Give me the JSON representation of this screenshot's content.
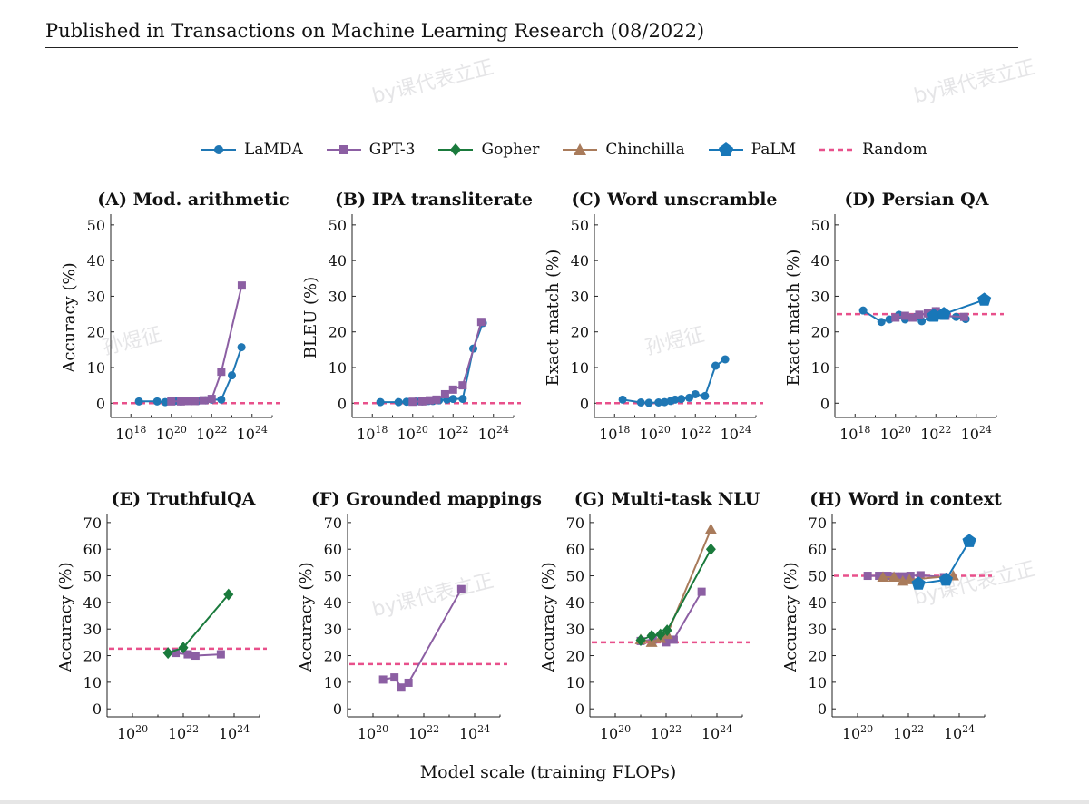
{
  "header": {
    "text": "Published in Transactions on Machine Learning Research (08/2022)"
  },
  "watermarks": {
    "a": "by课代表立正",
    "b": "by课代表立正",
    "c": "孙煜征",
    "d": "孙煜征",
    "e": "by课代表立正",
    "f": "by课代表立正"
  },
  "colors": {
    "LaMDA": "#1f77b4",
    "GPT-3": "#8c5fa3",
    "Gopher": "#1a7a3c",
    "Chinchilla": "#a97b5b",
    "PaLM": "#1877b8",
    "Random": "#e8508b"
  },
  "legend": [
    {
      "label": "LaMDA",
      "marker": "circle"
    },
    {
      "label": "GPT-3",
      "marker": "square"
    },
    {
      "label": "Gopher",
      "marker": "diamond"
    },
    {
      "label": "Chinchilla",
      "marker": "triangle"
    },
    {
      "label": "PaLM",
      "marker": "pentagon"
    },
    {
      "label": "Random",
      "marker": "dashed"
    }
  ],
  "global_xlabel": "Model scale (training FLOPs)",
  "chart_data": [
    {
      "type": "line",
      "title": "(A) Mod. arithmetic",
      "ylabel": "Accuracy (%)",
      "xscale": "log",
      "xlim": [
        1e+17,
        1e+25
      ],
      "ylim": [
        -4,
        52
      ],
      "xticks": [
        18,
        20,
        22,
        24
      ],
      "yticks": [
        0,
        10,
        20,
        30,
        40,
        50
      ],
      "random": 0,
      "series": [
        {
          "name": "LaMDA",
          "marker": "circle",
          "x": [
            2.5e+18,
            2e+19,
            5e+19,
            1.5e+20,
            3e+20,
            6e+20,
            1e+21,
            2e+21,
            5e+21,
            1e+22,
            3e+22,
            1e+23,
            3e+23
          ],
          "y": [
            0.5,
            0.5,
            0.3,
            0.6,
            0.5,
            0.6,
            0.7,
            0.6,
            0.8,
            1.0,
            1.0,
            7.8,
            15.7
          ]
        },
        {
          "name": "GPT-3",
          "marker": "square",
          "x": [
            1e+20,
            3e+20,
            7e+20,
            1.5e+21,
            4e+21,
            1e+22,
            3e+22,
            3.1e+23
          ],
          "y": [
            0.5,
            0.5,
            0.6,
            0.6,
            0.8,
            1.2,
            8.8,
            33
          ]
        }
      ]
    },
    {
      "type": "line",
      "title": "(B) IPA transliterate",
      "ylabel": "BLEU (%)",
      "xscale": "log",
      "xlim": [
        1e+17,
        1e+25
      ],
      "ylim": [
        -4,
        52
      ],
      "xticks": [
        18,
        20,
        22,
        24
      ],
      "yticks": [
        0,
        10,
        20,
        30,
        40,
        50
      ],
      "random": 0,
      "series": [
        {
          "name": "LaMDA",
          "marker": "circle",
          "x": [
            2.5e+18,
            2e+19,
            5e+19,
            1.5e+20,
            3e+20,
            6e+20,
            1e+21,
            2e+21,
            5e+21,
            1e+22,
            3e+22,
            1e+23,
            3e+23
          ],
          "y": [
            0.3,
            0.3,
            0.4,
            0.5,
            0.5,
            0.6,
            0.6,
            0.8,
            1.0,
            1.2,
            1.2,
            15.3,
            22.5
          ]
        },
        {
          "name": "GPT-3",
          "marker": "square",
          "x": [
            1e+20,
            3e+20,
            7e+20,
            1.5e+21,
            4e+21,
            1e+22,
            3e+22,
            2.5e+23
          ],
          "y": [
            0.4,
            0.5,
            0.8,
            1.0,
            2.5,
            3.8,
            5.0,
            22.8
          ]
        }
      ]
    },
    {
      "type": "line",
      "title": "(C) Word unscramble",
      "ylabel": "Exact match (%)",
      "xscale": "log",
      "xlim": [
        1e+17,
        1e+25
      ],
      "ylim": [
        -4,
        52
      ],
      "xticks": [
        18,
        20,
        22,
        24
      ],
      "yticks": [
        0,
        10,
        20,
        30,
        40,
        50
      ],
      "random": 0,
      "series": [
        {
          "name": "LaMDA",
          "marker": "circle",
          "x": [
            2.5e+18,
            2e+19,
            5e+19,
            1.5e+20,
            3e+20,
            6e+20,
            1e+21,
            2e+21,
            5e+21,
            1e+22,
            3e+22,
            1e+23,
            3e+23
          ],
          "y": [
            1.0,
            0.2,
            0.1,
            0.2,
            0.3,
            0.6,
            1.0,
            1.2,
            1.5,
            2.5,
            2.0,
            10.5,
            12.3
          ]
        }
      ]
    },
    {
      "type": "line",
      "title": "(D) Persian QA",
      "ylabel": "Exact match (%)",
      "xscale": "log",
      "xlim": [
        1e+17,
        1e+25
      ],
      "ylim": [
        -4,
        52
      ],
      "xticks": [
        18,
        20,
        22,
        24
      ],
      "yticks": [
        0,
        10,
        20,
        30,
        40,
        50
      ],
      "random": 25,
      "series": [
        {
          "name": "LaMDA",
          "marker": "circle",
          "x": [
            2.5e+18,
            2e+19,
            5e+19,
            1.5e+20,
            3e+20,
            6e+20,
            1e+21,
            2e+21,
            5e+21,
            1e+22,
            3e+22,
            1e+23,
            3e+23
          ],
          "y": [
            26.0,
            22.8,
            23.5,
            24.8,
            23.5,
            24.0,
            24.2,
            23.0,
            24.0,
            25.8,
            24.5,
            24.2,
            23.6
          ]
        },
        {
          "name": "GPT-3",
          "marker": "square",
          "x": [
            1e+20,
            3e+20,
            7e+20,
            1.5e+21,
            4e+21,
            1e+22,
            3e+22,
            2.5e+23
          ],
          "y": [
            24.0,
            24.5,
            24.0,
            24.8,
            25.2,
            25.8,
            24.5,
            24.2
          ]
        },
        {
          "name": "PaLM",
          "marker": "pentagon",
          "x": [
            8e+21,
            2.5e+22,
            2.5e+24
          ],
          "y": [
            24.5,
            25.0,
            29.0
          ]
        }
      ]
    },
    {
      "type": "line",
      "title": "(E) TruthfulQA",
      "ylabel": "Accuracy (%)",
      "xscale": "log",
      "xlim": [
        1e+19,
        1e+25
      ],
      "ylim": [
        -3,
        72
      ],
      "xticks": [
        20,
        22,
        24
      ],
      "yticks": [
        0,
        10,
        20,
        30,
        40,
        50,
        60,
        70
      ],
      "random": 22.6,
      "series": [
        {
          "name": "GPT-3",
          "marker": "square",
          "x": [
            5e+21,
            1.5e+22,
            3e+22,
            3e+23
          ],
          "y": [
            21.0,
            20.5,
            20.0,
            20.5
          ]
        },
        {
          "name": "Gopher",
          "marker": "diamond",
          "x": [
            2.5e+21,
            1e+22,
            6e+23
          ],
          "y": [
            21.0,
            23.0,
            43.0
          ]
        }
      ]
    },
    {
      "type": "line",
      "title": "(F) Grounded mappings",
      "ylabel": "Accuracy (%)",
      "xscale": "log",
      "xlim": [
        1e+19,
        1e+25
      ],
      "ylim": [
        -3,
        72
      ],
      "xticks": [
        20,
        22,
        24
      ],
      "yticks": [
        0,
        10,
        20,
        30,
        40,
        50,
        60,
        70
      ],
      "random": 16.8,
      "series": [
        {
          "name": "GPT-3",
          "marker": "square",
          "x": [
            2.5e+20,
            7e+20,
            1.3e+21,
            2.5e+21,
            3e+23
          ],
          "y": [
            11.0,
            11.8,
            8.0,
            9.8,
            45.0
          ]
        }
      ]
    },
    {
      "type": "line",
      "title": "(G) Multi-task NLU",
      "ylabel": "Accuracy (%)",
      "xscale": "log",
      "xlim": [
        1e+19,
        1e+25
      ],
      "ylim": [
        -3,
        72
      ],
      "xticks": [
        20,
        22,
        24
      ],
      "yticks": [
        0,
        10,
        20,
        30,
        40,
        50,
        60,
        70
      ],
      "random": 25,
      "series": [
        {
          "name": "GPT-3",
          "marker": "square",
          "x": [
            1e+21,
            3e+21,
            1e+22,
            2e+22,
            2.5e+23
          ],
          "y": [
            25.5,
            26.0,
            25.0,
            26.0,
            44.0
          ]
        },
        {
          "name": "Chinchilla",
          "marker": "triangle",
          "x": [
            1e+21,
            2.7e+21,
            6e+21,
            1.1e+22,
            5.8e+23
          ],
          "y": [
            26.0,
            25.0,
            26.5,
            28.0,
            67.5
          ]
        },
        {
          "name": "Gopher",
          "marker": "diamond",
          "x": [
            1e+21,
            2.7e+21,
            6e+21,
            1.1e+22,
            5.8e+23
          ],
          "y": [
            25.8,
            27.5,
            28.0,
            29.5,
            60.0
          ]
        }
      ]
    },
    {
      "type": "line",
      "title": "(H) Word in context",
      "ylabel": "Accuracy (%)",
      "xscale": "log",
      "xlim": [
        1e+19,
        1e+25
      ],
      "ylim": [
        -3,
        72
      ],
      "xticks": [
        20,
        22,
        24
      ],
      "yticks": [
        0,
        10,
        20,
        30,
        40,
        50,
        60,
        70
      ],
      "random": 50,
      "series": [
        {
          "name": "GPT-3",
          "marker": "square",
          "x": [
            2.5e+20,
            7e+20,
            1.5e+21,
            3e+21,
            6e+21,
            1.2e+22,
            3e+22,
            2.5e+23
          ],
          "y": [
            50.0,
            50.0,
            50.0,
            49.8,
            49.8,
            50.0,
            50.2,
            49.5
          ]
        },
        {
          "name": "Chinchilla",
          "marker": "triangle",
          "x": [
            1e+21,
            2.7e+21,
            6e+21,
            1.1e+22,
            5.8e+23
          ],
          "y": [
            49.5,
            49.5,
            48.0,
            48.5,
            50.0
          ]
        },
        {
          "name": "PaLM",
          "marker": "pentagon",
          "x": [
            2.5e+22,
            3e+23,
            2.5e+24
          ],
          "y": [
            47.0,
            48.5,
            63.0
          ]
        }
      ]
    }
  ]
}
